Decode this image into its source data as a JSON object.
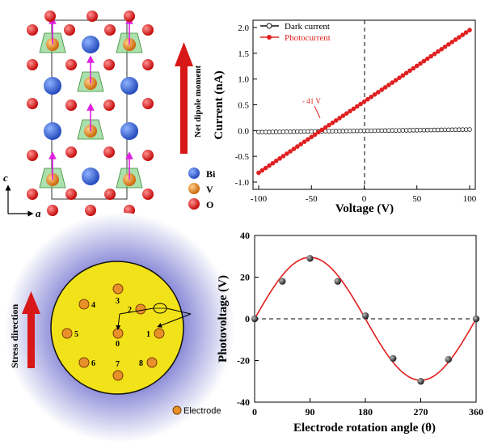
{
  "figure": {
    "panel_a": {
      "axis_c": "c",
      "axis_a": "a",
      "arrow_label": "Net dipole moment",
      "legend": [
        {
          "symbol": "Bi",
          "color": "#2a5bd7"
        },
        {
          "symbol": "V",
          "color": "#e07a10"
        },
        {
          "symbol": "O",
          "color": "#d81818"
        }
      ]
    },
    "panel_c": {
      "stress_label": "Stress direction",
      "electrode_legend": "Electrode",
      "electrodes": [
        {
          "label": "0"
        },
        {
          "label": "1"
        },
        {
          "label": "2"
        },
        {
          "label": "3"
        },
        {
          "label": "4"
        },
        {
          "label": "5"
        },
        {
          "label": "6"
        },
        {
          "label": "7"
        },
        {
          "label": "8"
        }
      ]
    }
  },
  "chart_data": [
    {
      "type": "line",
      "xlabel": "Voltage (V)",
      "ylabel": "Current (nA)",
      "xlim": [
        -100,
        100
      ],
      "ylim": [
        -1.0,
        2.0
      ],
      "xticks": [
        "-100",
        "-50",
        "0",
        "50",
        "100"
      ],
      "yticks": [
        "-1.0",
        "-0.5",
        "0.0",
        "0.5",
        "1.0",
        "1.5",
        "2.0"
      ],
      "annotation": "- 41 V",
      "legend_position": "top-left",
      "series": [
        {
          "name": "Dark current",
          "color": "#111111",
          "x": [
            -100,
            100
          ],
          "y": [
            -0.03,
            0.02
          ]
        },
        {
          "name": "Photocurrent",
          "color": "#e02020",
          "x": [
            -100,
            -41,
            0,
            100
          ],
          "y": [
            -0.82,
            0.0,
            0.56,
            1.95
          ]
        }
      ]
    },
    {
      "type": "scatter",
      "xlabel": "Electrode rotation angle (θ)",
      "ylabel": "Photovoltage (V)",
      "xlim": [
        0,
        360
      ],
      "ylim": [
        -40,
        40
      ],
      "xticks": [
        "0",
        "90",
        "180",
        "270",
        "360"
      ],
      "yticks": [
        "-40",
        "-20",
        "0",
        "20",
        "40"
      ],
      "series": [
        {
          "name": "",
          "x": [
            0,
            45,
            90,
            135,
            180,
            225,
            270,
            315,
            360
          ],
          "y": [
            0,
            18,
            29,
            18,
            1.5,
            -19,
            -30,
            -19.5,
            0
          ]
        }
      ],
      "fit": {
        "type": "sine",
        "amplitude": 29.5
      }
    }
  ]
}
